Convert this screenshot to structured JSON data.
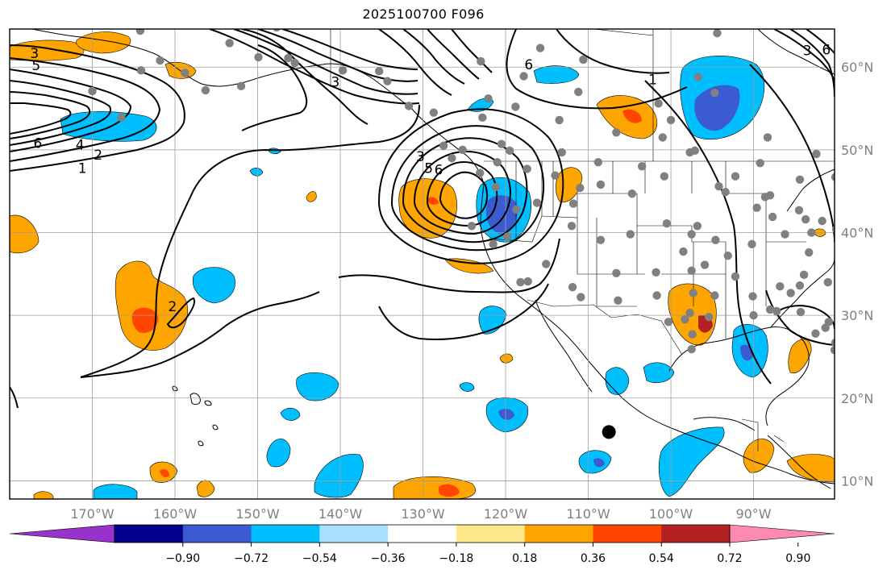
{
  "title": "2025100700 F096",
  "colors": {
    "grid": "#9e9e9e",
    "frame": "#000000",
    "coast": "#000000",
    "contour": "#000000",
    "station_dot": "#808080",
    "marker": "#000000",
    "axis_label": "#808080",
    "neg_light": "#aadeff",
    "neg_mid": "#00bfff",
    "neg_strong": "#3b5bd0",
    "pos_light": "#fde98b",
    "pos_mid": "#ffa500",
    "pos_strong": "#ff4500",
    "pos_dark": "#b22222"
  },
  "map": {
    "lat_labels": [
      {
        "value": 60,
        "label": "60°N"
      },
      {
        "value": 50,
        "label": "50°N"
      },
      {
        "value": 40,
        "label": "40°N"
      },
      {
        "value": 30,
        "label": "30°N"
      },
      {
        "value": 20,
        "label": "20°N"
      },
      {
        "value": 10,
        "label": "10°N"
      }
    ],
    "lon_labels": [
      {
        "value": -170,
        "label": "170°W"
      },
      {
        "value": -160,
        "label": "160°W"
      },
      {
        "value": -150,
        "label": "150°W"
      },
      {
        "value": -140,
        "label": "140°W"
      },
      {
        "value": -130,
        "label": "130°W"
      },
      {
        "value": -120,
        "label": "120°W"
      },
      {
        "value": -110,
        "label": "110°W"
      },
      {
        "value": -100,
        "label": "100°W"
      },
      {
        "value": -90,
        "label": "90°W"
      }
    ],
    "contour_labels": [
      {
        "text": "3",
        "lon": -177,
        "lat": 61.7
      },
      {
        "text": "5",
        "lon": -176.8,
        "lat": 60.2
      },
      {
        "text": "6",
        "lon": -176.6,
        "lat": 50.8
      },
      {
        "text": "4",
        "lon": -171.5,
        "lat": 50.6
      },
      {
        "text": "2",
        "lon": -169.3,
        "lat": 49.4
      },
      {
        "text": "1",
        "lon": -171.2,
        "lat": 47.8
      },
      {
        "text": "2",
        "lon": -160.3,
        "lat": 31.1
      },
      {
        "text": "3",
        "lon": -130.3,
        "lat": 49.2
      },
      {
        "text": "5",
        "lon": -129.3,
        "lat": 47.8
      },
      {
        "text": "6",
        "lon": -128.1,
        "lat": 47.6
      },
      {
        "text": "6",
        "lon": -117.2,
        "lat": 60.3
      },
      {
        "text": "3",
        "lon": -140.6,
        "lat": 58.2
      },
      {
        "text": "1",
        "lon": -102.2,
        "lat": 58.5
      },
      {
        "text": "3",
        "lon": -83.5,
        "lat": 62
      },
      {
        "text": "6",
        "lon": -81.2,
        "lat": 62.1
      }
    ],
    "stations": [
      [
        -164.2,
        64.4
      ],
      [
        -164.1,
        59.6
      ],
      [
        -158.8,
        59.3
      ],
      [
        -153.4,
        62.9
      ],
      [
        -147.7,
        64.8
      ],
      [
        -152,
        57.7
      ],
      [
        -156.3,
        57.2
      ],
      [
        -146.3,
        61.1
      ],
      [
        -135.3,
        59.5
      ],
      [
        -131.7,
        55.3
      ],
      [
        -123,
        60.7
      ],
      [
        -117.8,
        58.9
      ],
      [
        -113.5,
        53.6
      ],
      [
        -106.6,
        52.1
      ],
      [
        -97.1,
        49.9
      ],
      [
        -94.7,
        56.9
      ],
      [
        -115.8,
        62.3
      ],
      [
        -110.6,
        60.9
      ],
      [
        -96.7,
        58.8
      ],
      [
        -94.4,
        64.1
      ],
      [
        -88.3,
        51.5
      ],
      [
        -84.4,
        46.4
      ],
      [
        -80.1,
        46.7
      ],
      [
        -79.2,
        43.7
      ],
      [
        -76.3,
        44.2
      ],
      [
        -82.4,
        49.5
      ],
      [
        -89.2,
        48.4
      ],
      [
        -93.4,
        44.9
      ],
      [
        -97.7,
        49.7
      ],
      [
        -100.8,
        46.8
      ],
      [
        -104.7,
        44.7
      ],
      [
        -108.5,
        45.8
      ],
      [
        -111,
        45.4
      ],
      [
        -114,
        46.9
      ],
      [
        -117.4,
        47.7
      ],
      [
        -121.2,
        45.5
      ],
      [
        -123.1,
        47.2
      ],
      [
        -124.1,
        40.8
      ],
      [
        -121.5,
        38.6
      ],
      [
        -119.8,
        39.5
      ],
      [
        -116.2,
        43.6
      ],
      [
        -112,
        40.8
      ],
      [
        -108.5,
        39.1
      ],
      [
        -104.9,
        39.8
      ],
      [
        -100.5,
        41.1
      ],
      [
        -97.5,
        39.8
      ],
      [
        -94.6,
        39.1
      ],
      [
        -90.2,
        38.6
      ],
      [
        -86.2,
        39.8
      ],
      [
        -83,
        40
      ],
      [
        -80,
        40.4
      ],
      [
        -77.6,
        39.2
      ],
      [
        -75.2,
        40
      ],
      [
        -72,
        42
      ],
      [
        -71,
        43
      ],
      [
        -74,
        41.5
      ],
      [
        -76.5,
        37.4
      ],
      [
        -78.5,
        35.8
      ],
      [
        -81,
        34
      ],
      [
        -84.4,
        33.6
      ],
      [
        -86.8,
        33.5
      ],
      [
        -90.1,
        32.3
      ],
      [
        -92.2,
        34.7
      ],
      [
        -95.9,
        36.1
      ],
      [
        -97.5,
        35.4
      ],
      [
        -101.8,
        35.2
      ],
      [
        -106.6,
        35.1
      ],
      [
        -111.9,
        33.4
      ],
      [
        -115.1,
        36.2
      ],
      [
        -117.3,
        34.1
      ],
      [
        -118.2,
        34
      ],
      [
        -110.9,
        32.2
      ],
      [
        -106.4,
        31.8
      ],
      [
        -101.7,
        32.4
      ],
      [
        -97.3,
        32.7
      ],
      [
        -94.7,
        32.4
      ],
      [
        -90,
        30
      ],
      [
        -95.4,
        29.8
      ],
      [
        -97.7,
        30.3
      ],
      [
        -98.3,
        29.5
      ],
      [
        -97.4,
        27.7
      ],
      [
        -97.5,
        25.9
      ],
      [
        -100.3,
        29.2
      ],
      [
        -82.5,
        27.8
      ],
      [
        -81.3,
        28.5
      ],
      [
        -80.2,
        25.8
      ],
      [
        -84.3,
        30.4
      ],
      [
        -87.2,
        30.5
      ],
      [
        -88,
        30.7
      ],
      [
        -77.4,
        24.1
      ],
      [
        -80.1,
        26.7
      ],
      [
        -85.5,
        32.7
      ],
      [
        -87.7,
        41.9
      ],
      [
        -89.6,
        43
      ],
      [
        -93.1,
        37.2
      ],
      [
        -92.2,
        46.8
      ],
      [
        -94.2,
        45.6
      ],
      [
        -88,
        44.5
      ],
      [
        -84.5,
        42.7
      ],
      [
        -83.7,
        41.6
      ],
      [
        -81.7,
        41.4
      ],
      [
        -78.9,
        42.9
      ],
      [
        -73.8,
        42.7
      ],
      [
        -96.8,
        40.8
      ],
      [
        -98.5,
        37.7
      ],
      [
        -103.5,
        48
      ],
      [
        -108.8,
        48.5
      ],
      [
        -121,
        48.5
      ],
      [
        -126.5,
        49
      ],
      [
        -127.5,
        50.5
      ],
      [
        -120.5,
        50.7
      ],
      [
        -119.5,
        49.9
      ],
      [
        -113.2,
        49.7
      ],
      [
        -101,
        51.5
      ],
      [
        -101.5,
        55.6
      ],
      [
        -111.2,
        57
      ],
      [
        -100,
        53.6
      ],
      [
        -118.8,
        55.2
      ],
      [
        -122.8,
        53.9
      ],
      [
        -125.2,
        50
      ],
      [
        -128.7,
        54.5
      ],
      [
        -122.1,
        56.2
      ],
      [
        -134.3,
        58.3
      ],
      [
        -139.7,
        59.6
      ],
      [
        -145.5,
        60.5
      ],
      [
        -149.9,
        61.2
      ],
      [
        -161.8,
        60.8
      ],
      [
        -166.5,
        53.9
      ],
      [
        -170,
        57.1
      ],
      [
        -88.6,
        44.3
      ],
      [
        -118.7,
        42.8
      ],
      [
        -111.8,
        43.5
      ],
      [
        -75.5,
        47.6
      ],
      [
        -68.8,
        44.8
      ],
      [
        -83.9,
        34.9
      ],
      [
        -80.9,
        29.2
      ],
      [
        -83.3,
        37.6
      ]
    ],
    "marker": [
      -107.5,
      15.9
    ]
  },
  "colorbar": {
    "ticks": [
      "−0.90",
      "−0.72",
      "−0.54",
      "−0.36",
      "−0.18",
      "0.18",
      "0.36",
      "0.54",
      "0.72",
      "0.90"
    ],
    "segments": [
      "#8b00ff",
      "#00008b",
      "#3b5bd0",
      "#00bfff",
      "#aadeff",
      "#ffffff",
      "#fde98b",
      "#ffa500",
      "#ff4500",
      "#b22222",
      "#ff7fa8"
    ],
    "under_color": "#9932cc",
    "over_color": "#ff8ab0"
  }
}
